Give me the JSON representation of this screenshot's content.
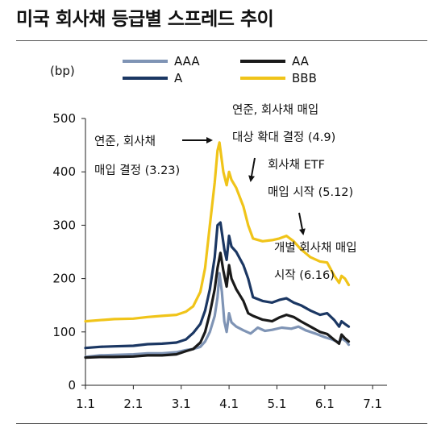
{
  "title": "미국 회사채 등급별 스프레드 추이",
  "chart_data": {
    "type": "line",
    "title": "미국 회사채 등급별 스프레드 추이",
    "ylabel": "(bp)",
    "xlabel": "",
    "ylim": [
      0,
      500
    ],
    "yticks": [
      0,
      100,
      200,
      300,
      400,
      500
    ],
    "xlim": [
      1.0,
      7.3
    ],
    "xticks": [
      1,
      2,
      3,
      4,
      5,
      6,
      7
    ],
    "xtick_labels": [
      "1.1",
      "2.1",
      "3.1",
      "4.1",
      "5.1",
      "6.1",
      "7.1"
    ],
    "grid": false,
    "legend_position": "top",
    "legend": [
      "AAA",
      "AA",
      "A",
      "BBB"
    ],
    "series": [
      {
        "name": "AAA",
        "color": "#7f94b5",
        "points": [
          [
            1.0,
            53
          ],
          [
            1.3,
            56
          ],
          [
            1.6,
            57
          ],
          [
            2.0,
            58
          ],
          [
            2.3,
            60
          ],
          [
            2.6,
            60
          ],
          [
            2.9,
            62
          ],
          [
            3.1,
            66
          ],
          [
            3.25,
            68
          ],
          [
            3.4,
            72
          ],
          [
            3.5,
            82
          ],
          [
            3.6,
            100
          ],
          [
            3.7,
            130
          ],
          [
            3.76,
            165
          ],
          [
            3.8,
            210
          ],
          [
            3.85,
            175
          ],
          [
            3.9,
            120
          ],
          [
            3.95,
            100
          ],
          [
            4.0,
            135
          ],
          [
            4.05,
            118
          ],
          [
            4.15,
            110
          ],
          [
            4.3,
            103
          ],
          [
            4.45,
            97
          ],
          [
            4.6,
            108
          ],
          [
            4.75,
            102
          ],
          [
            4.9,
            104
          ],
          [
            5.1,
            108
          ],
          [
            5.3,
            106
          ],
          [
            5.45,
            110
          ],
          [
            5.6,
            103
          ],
          [
            5.8,
            97
          ],
          [
            6.0,
            90
          ],
          [
            6.15,
            86
          ],
          [
            6.3,
            80
          ],
          [
            6.35,
            88
          ],
          [
            6.45,
            82
          ],
          [
            6.5,
            76
          ]
        ]
      },
      {
        "name": "AA",
        "color": "#1a1a1a",
        "points": [
          [
            1.0,
            52
          ],
          [
            1.3,
            53
          ],
          [
            1.6,
            53
          ],
          [
            2.0,
            54
          ],
          [
            2.3,
            56
          ],
          [
            2.6,
            56
          ],
          [
            2.9,
            58
          ],
          [
            3.1,
            64
          ],
          [
            3.25,
            68
          ],
          [
            3.4,
            80
          ],
          [
            3.5,
            100
          ],
          [
            3.6,
            135
          ],
          [
            3.7,
            180
          ],
          [
            3.76,
            220
          ],
          [
            3.82,
            248
          ],
          [
            3.88,
            215
          ],
          [
            3.95,
            185
          ],
          [
            4.0,
            225
          ],
          [
            4.05,
            200
          ],
          [
            4.15,
            180
          ],
          [
            4.3,
            158
          ],
          [
            4.4,
            135
          ],
          [
            4.5,
            130
          ],
          [
            4.7,
            123
          ],
          [
            4.9,
            120
          ],
          [
            5.05,
            127
          ],
          [
            5.2,
            132
          ],
          [
            5.35,
            128
          ],
          [
            5.5,
            120
          ],
          [
            5.7,
            110
          ],
          [
            5.9,
            100
          ],
          [
            6.05,
            96
          ],
          [
            6.2,
            85
          ],
          [
            6.3,
            78
          ],
          [
            6.35,
            95
          ],
          [
            6.42,
            88
          ],
          [
            6.5,
            82
          ]
        ]
      },
      {
        "name": "A",
        "color": "#1b3763",
        "points": [
          [
            1.0,
            70
          ],
          [
            1.3,
            72
          ],
          [
            1.6,
            73
          ],
          [
            2.0,
            74
          ],
          [
            2.3,
            77
          ],
          [
            2.6,
            78
          ],
          [
            2.9,
            80
          ],
          [
            3.1,
            86
          ],
          [
            3.25,
            98
          ],
          [
            3.4,
            115
          ],
          [
            3.5,
            140
          ],
          [
            3.6,
            180
          ],
          [
            3.7,
            240
          ],
          [
            3.76,
            300
          ],
          [
            3.82,
            305
          ],
          [
            3.9,
            255
          ],
          [
            3.95,
            235
          ],
          [
            4.0,
            280
          ],
          [
            4.05,
            260
          ],
          [
            4.15,
            250
          ],
          [
            4.3,
            225
          ],
          [
            4.4,
            200
          ],
          [
            4.5,
            165
          ],
          [
            4.7,
            158
          ],
          [
            4.9,
            155
          ],
          [
            5.05,
            160
          ],
          [
            5.2,
            163
          ],
          [
            5.35,
            155
          ],
          [
            5.5,
            150
          ],
          [
            5.7,
            140
          ],
          [
            5.9,
            132
          ],
          [
            6.05,
            135
          ],
          [
            6.2,
            122
          ],
          [
            6.3,
            110
          ],
          [
            6.35,
            120
          ],
          [
            6.42,
            115
          ],
          [
            6.5,
            110
          ]
        ]
      },
      {
        "name": "BBB",
        "color": "#f0c419",
        "points": [
          [
            1.0,
            120
          ],
          [
            1.3,
            122
          ],
          [
            1.6,
            124
          ],
          [
            2.0,
            125
          ],
          [
            2.3,
            128
          ],
          [
            2.6,
            130
          ],
          [
            2.9,
            132
          ],
          [
            3.1,
            138
          ],
          [
            3.25,
            148
          ],
          [
            3.4,
            175
          ],
          [
            3.5,
            220
          ],
          [
            3.6,
            300
          ],
          [
            3.7,
            380
          ],
          [
            3.76,
            440
          ],
          [
            3.8,
            455
          ],
          [
            3.88,
            400
          ],
          [
            3.95,
            375
          ],
          [
            4.0,
            400
          ],
          [
            4.05,
            385
          ],
          [
            4.15,
            370
          ],
          [
            4.3,
            335
          ],
          [
            4.4,
            300
          ],
          [
            4.5,
            275
          ],
          [
            4.7,
            270
          ],
          [
            4.9,
            272
          ],
          [
            5.05,
            275
          ],
          [
            5.2,
            280
          ],
          [
            5.35,
            270
          ],
          [
            5.5,
            255
          ],
          [
            5.7,
            240
          ],
          [
            5.9,
            232
          ],
          [
            6.05,
            230
          ],
          [
            6.2,
            205
          ],
          [
            6.3,
            192
          ],
          [
            6.35,
            205
          ],
          [
            6.42,
            200
          ],
          [
            6.5,
            188
          ]
        ]
      }
    ],
    "annotations": [
      {
        "lines": [
          "연준, 회사채",
          "매입 결정 (3.23)"
        ]
      },
      {
        "lines": [
          "연준, 회사채 매입",
          "대상 확대 결정 (4.9)"
        ]
      },
      {
        "lines": [
          "회사채 ETF",
          "매입 시작 (5.12)"
        ]
      },
      {
        "lines": [
          "개별 회사채 매입",
          "시작 (6.16)"
        ]
      }
    ]
  }
}
